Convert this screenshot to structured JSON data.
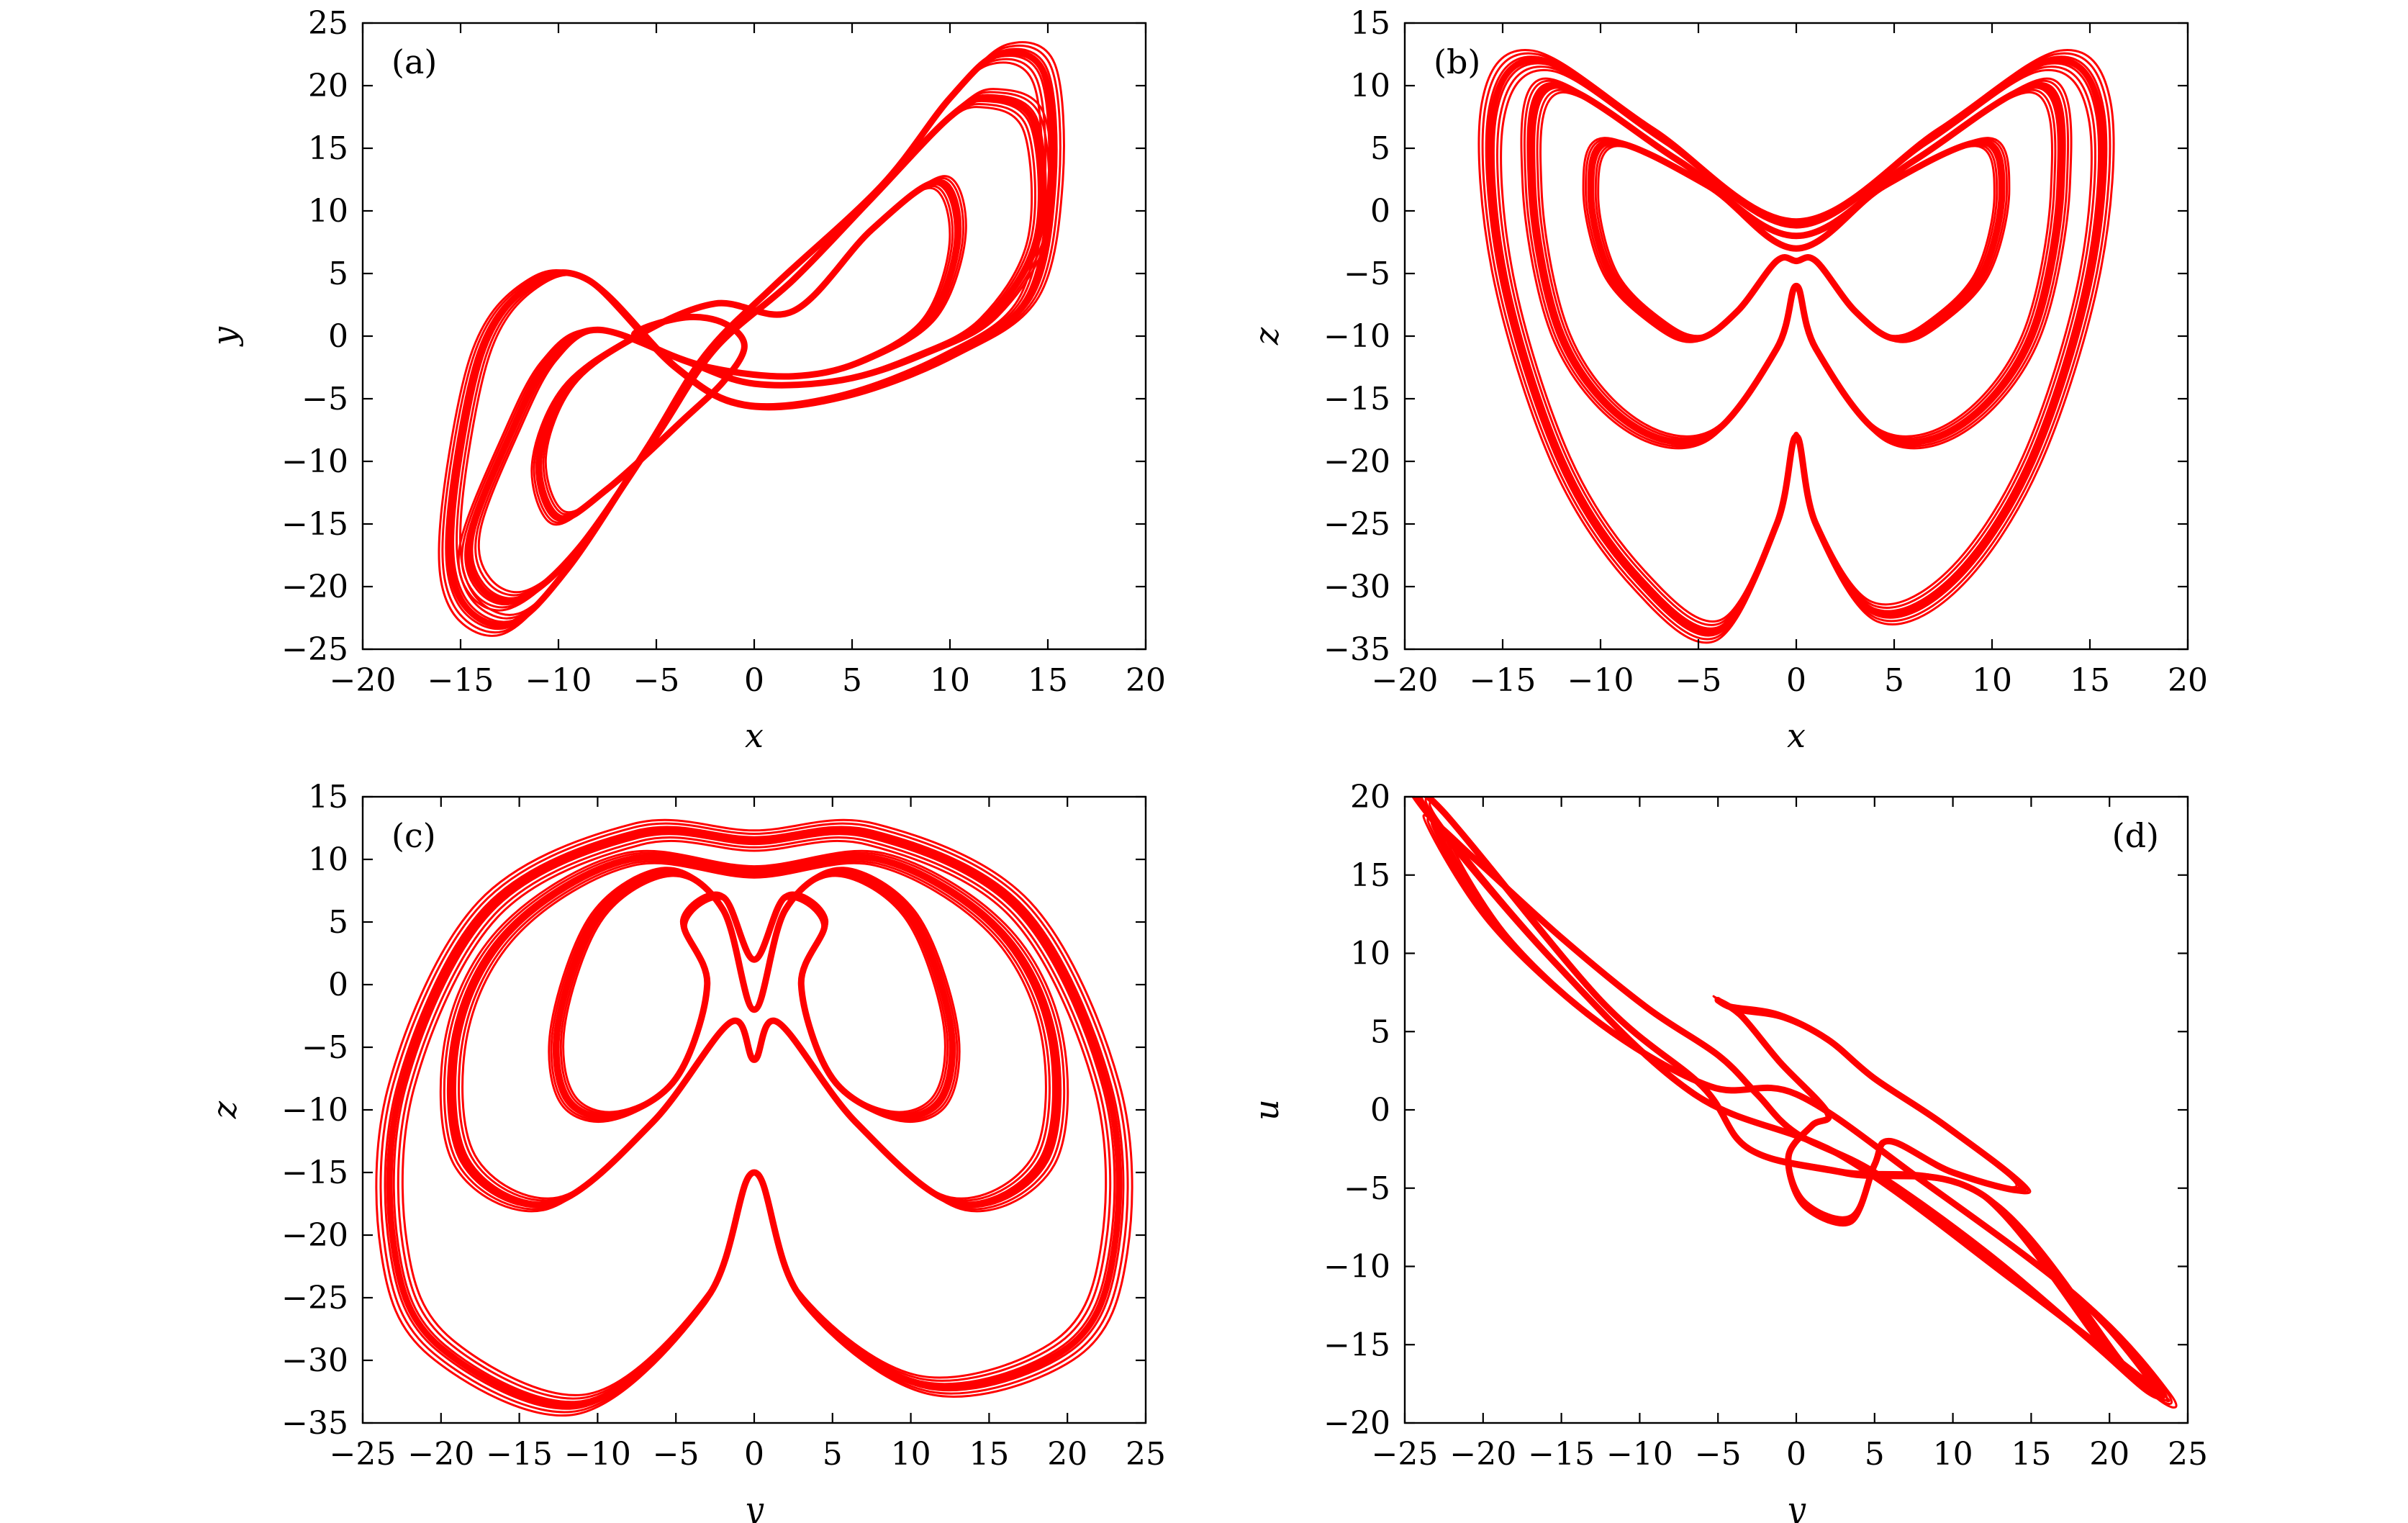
{
  "chart_data": [
    {
      "type": "line",
      "panel_label": "(a)",
      "xlabel": "x",
      "ylabel": "y",
      "xlim": [
        -20,
        20
      ],
      "ylim": [
        -25,
        25
      ],
      "xticks": [
        -20,
        -15,
        -10,
        -5,
        0,
        5,
        10,
        15,
        20
      ],
      "yticks": [
        -25,
        -20,
        -15,
        -10,
        -5,
        0,
        5,
        10,
        15,
        20,
        25
      ],
      "xtick_labels": [
        "−20",
        "−15",
        "−10",
        "−5",
        "0",
        "5",
        "10",
        "15",
        "20"
      ],
      "ytick_labels": [
        "−25",
        "−20",
        "−15",
        "−10",
        "−5",
        "0",
        "5",
        "10",
        "15",
        "20",
        "25"
      ],
      "panel_label_position": "top-left",
      "color": "#ff0000",
      "series": [
        {
          "x": [
            2.0,
            6.0,
            9.4,
            10.4,
            9.0,
            5.5,
            2.0,
            -2.0,
            -5.0,
            -6.0,
            -3.5,
            -1.5,
            -0.5,
            -1.5,
            -3.5,
            -7.5,
            -10.0,
            -11.0,
            -9.5,
            -6.0,
            -2.0,
            2.0
          ],
          "y": [
            2.0,
            8.5,
            12.3,
            8.0,
            1.5,
            -2.0,
            -3.2,
            -2.6,
            -1.0,
            0.3,
            1.5,
            1.0,
            -0.8,
            -3.5,
            -6.5,
            -12.2,
            -14.5,
            -10.0,
            -4.0,
            0.0,
            2.6,
            2.0
          ]
        },
        {
          "x": [
            2.0,
            6.0,
            10.0,
            12.0,
            14.3,
            14.5,
            12.0,
            8.5,
            4.5,
            0.0,
            -3.5,
            -8.0,
            -10.5,
            -12.5,
            -14.5,
            -14.0,
            -12.0,
            -9.0,
            -5.0,
            -2.0,
            2.0
          ],
          "y": [
            4.5,
            11.0,
            17.5,
            19.0,
            17.0,
            8.0,
            1.5,
            -1.5,
            -3.5,
            -3.8,
            -2.0,
            0.5,
            -2.0,
            -8.0,
            -16.0,
            -20.0,
            -21.0,
            -17.0,
            -8.0,
            -1.0,
            4.5
          ]
        },
        {
          "x": [
            1.0,
            6.5,
            10.0,
            12.5,
            14.8,
            15.2,
            14.0,
            10.0,
            4.5,
            -0.5,
            -4.0,
            -8.5,
            -11.5,
            -14.0,
            -15.5,
            -15.0,
            -12.5,
            -9.5,
            -5.5,
            -2.5,
            1.0
          ],
          "y": [
            4.0,
            12.0,
            19.0,
            22.5,
            21.0,
            12.0,
            3.0,
            -1.5,
            -4.8,
            -5.5,
            -2.5,
            4.5,
            4.0,
            -1.5,
            -14.5,
            -21.0,
            -23.0,
            -18.5,
            -9.0,
            -1.5,
            4.0
          ]
        }
      ]
    },
    {
      "type": "line",
      "panel_label": "(b)",
      "xlabel": "x",
      "ylabel": "z",
      "xlim": [
        -20,
        20
      ],
      "ylim": [
        -35,
        15
      ],
      "xticks": [
        -20,
        -15,
        -10,
        -5,
        0,
        5,
        10,
        15,
        20
      ],
      "yticks": [
        -35,
        -30,
        -25,
        -20,
        -15,
        -10,
        -5,
        0,
        5,
        10,
        15
      ],
      "xtick_labels": [
        "−20",
        "−15",
        "−10",
        "−5",
        "0",
        "5",
        "10",
        "15",
        "20"
      ],
      "ytick_labels": [
        "−35",
        "−30",
        "−25",
        "−20",
        "−15",
        "−10",
        "−5",
        "0",
        "5",
        "10",
        "15"
      ],
      "panel_label_position": "top-left",
      "color": "#ff0000",
      "series": [
        {
          "x": [
            0.0,
            -4.5,
            -9.5,
            -10.5,
            -9.5,
            -7.0,
            -5.0,
            -3.0,
            -1.0,
            0.0,
            1.0,
            3.0,
            5.0,
            7.0,
            9.5,
            10.5,
            9.5,
            4.5,
            0.0
          ],
          "y": [
            -3.0,
            2.0,
            5.5,
            1.5,
            -5.0,
            -9.0,
            -10.2,
            -8.0,
            -4.0,
            -4.0,
            -4.0,
            -8.0,
            -10.2,
            -9.0,
            -5.0,
            1.5,
            5.5,
            2.0,
            -3.0
          ]
        },
        {
          "x": [
            0.0,
            -6.0,
            -12.5,
            -13.5,
            -12.0,
            -8.5,
            -4.5,
            -1.0,
            0.0,
            1.0,
            4.5,
            8.5,
            12.0,
            13.5,
            12.5,
            6.0,
            0.0
          ],
          "y": [
            -2.0,
            4.0,
            10.0,
            2.0,
            -10.0,
            -17.0,
            -18.0,
            -11.0,
            -6.0,
            -11.0,
            -18.0,
            -17.0,
            -10.0,
            2.0,
            10.0,
            4.0,
            -2.0
          ]
        },
        {
          "x": [
            0.0,
            -7.0,
            -13.0,
            -15.5,
            -15.0,
            -12.0,
            -8.0,
            -4.0,
            -1.0,
            0.0,
            1.0,
            4.0,
            8.0,
            12.0,
            15.0,
            15.5,
            13.0,
            7.0,
            0.0
          ],
          "y": [
            -1.0,
            6.0,
            12.0,
            8.0,
            -5.0,
            -20.0,
            -29.5,
            -33.5,
            -25.0,
            -18.0,
            -25.0,
            -32.0,
            -29.5,
            -20.0,
            -5.0,
            8.0,
            12.0,
            6.0,
            -1.0
          ]
        }
      ]
    },
    {
      "type": "line",
      "panel_label": "(c)",
      "xlabel": "y",
      "ylabel": "z",
      "xlim": [
        -25,
        25
      ],
      "ylim": [
        -35,
        15
      ],
      "xticks": [
        -25,
        -20,
        -15,
        -10,
        -5,
        0,
        5,
        10,
        15,
        20,
        25
      ],
      "yticks": [
        -35,
        -30,
        -25,
        -20,
        -15,
        -10,
        -5,
        0,
        5,
        10,
        15
      ],
      "xtick_labels": [
        "−25",
        "−20",
        "−15",
        "−10",
        "−5",
        "0",
        "5",
        "10",
        "15",
        "20",
        "25"
      ],
      "ytick_labels": [
        "−35",
        "−30",
        "−25",
        "−20",
        "−15",
        "−10",
        "−5",
        "0",
        "5",
        "10",
        "15"
      ],
      "panel_label_position": "top-left",
      "color": "#ff0000",
      "series": [
        {
          "x": [
            0.0,
            -2.0,
            -5.5,
            -10.0,
            -12.5,
            -12.0,
            -9.0,
            -5.0,
            -3.0,
            -4.5,
            -2.0,
            0.0,
            2.0,
            4.5,
            3.0,
            5.0,
            9.0,
            12.0,
            12.5,
            10.0,
            5.5,
            2.0,
            0.0
          ],
          "y": [
            -2.0,
            6.0,
            9.0,
            5.5,
            -3.0,
            -9.0,
            -10.5,
            -7.5,
            0.0,
            5.0,
            7.0,
            2.0,
            7.0,
            5.0,
            0.0,
            -7.5,
            -10.5,
            -9.0,
            -3.0,
            5.5,
            9.0,
            6.0,
            -2.0
          ]
        },
        {
          "x": [
            0.0,
            -8.0,
            -15.5,
            -19.0,
            -18.5,
            -13.0,
            -6.5,
            -1.5,
            0.0,
            1.5,
            6.5,
            13.0,
            18.5,
            19.0,
            15.5,
            8.0,
            0.0
          ],
          "y": [
            9.0,
            10.0,
            4.5,
            -4.0,
            -14.0,
            -17.5,
            -11.0,
            -3.0,
            -6.0,
            -3.0,
            -11.0,
            -17.5,
            -14.0,
            -4.0,
            4.5,
            10.0,
            9.0
          ]
        },
        {
          "x": [
            0.0,
            -7.5,
            -17.0,
            -22.5,
            -23.0,
            -20.0,
            -11.0,
            -3.0,
            0.0,
            3.0,
            11.0,
            20.0,
            23.0,
            22.5,
            17.0,
            7.5,
            0.0
          ],
          "y": [
            11.5,
            12.0,
            6.0,
            -8.0,
            -21.0,
            -29.0,
            -33.5,
            -25.0,
            -15.0,
            -25.0,
            -32.0,
            -29.0,
            -21.0,
            -8.0,
            6.0,
            12.0,
            11.5
          ]
        }
      ]
    },
    {
      "type": "line",
      "panel_label": "(d)",
      "xlabel": "y",
      "ylabel": "u",
      "xlim": [
        -25,
        25
      ],
      "ylim": [
        -20,
        20
      ],
      "xticks": [
        -25,
        -20,
        -15,
        -10,
        -5,
        0,
        5,
        10,
        15,
        20,
        25
      ],
      "yticks": [
        -20,
        -15,
        -10,
        -5,
        0,
        5,
        10,
        15,
        20
      ],
      "xtick_labels": [
        "−25",
        "−20",
        "−15",
        "−10",
        "−5",
        "0",
        "5",
        "10",
        "15",
        "20",
        "25"
      ],
      "ytick_labels": [
        "−20",
        "−15",
        "−10",
        "−5",
        "0",
        "5",
        "10",
        "15",
        "20"
      ],
      "panel_label_position": "top-right",
      "color": "#ff0000",
      "series": [
        {
          "x": [
            2.0,
            -1.0,
            -3.5,
            -5.0,
            -4.0,
            -1.0,
            2.0,
            5.0,
            9.5,
            14.5,
            10.0,
            6.0,
            5.0,
            3.5,
            0.5,
            -0.5,
            1.0,
            2.0
          ],
          "y": [
            -0.2,
            3.0,
            6.0,
            7.0,
            6.5,
            6.0,
            4.5,
            2.0,
            -1.0,
            -5.0,
            -4.0,
            -2.0,
            -3.5,
            -7.0,
            -6.0,
            -3.0,
            -1.0,
            -0.2
          ]
        },
        {
          "x": [
            -23.0,
            -20.5,
            -15.0,
            -9.5,
            -5.0,
            -2.5,
            0.0,
            5.0,
            12.0,
            18.5,
            22.5,
            23.0,
            18.0,
            8.0,
            0.0,
            -5.5,
            -12.5,
            -19.0,
            -23.0
          ],
          "y": [
            18.0,
            16.0,
            11.0,
            6.5,
            3.5,
            1.0,
            -1.5,
            -4.0,
            -9.0,
            -14.5,
            -18.0,
            -17.5,
            -12.0,
            -4.5,
            1.0,
            1.5,
            5.5,
            11.5,
            18.0
          ]
        },
        {
          "x": [
            -23.5,
            -22.5,
            -12.5,
            -6.0,
            -3.0,
            3.0,
            12.0,
            20.5,
            22.5,
            14.0,
            3.0,
            -6.5,
            -15.5,
            -23.5
          ],
          "y": [
            19.0,
            19.0,
            7.0,
            1.5,
            -2.5,
            -4.0,
            -5.5,
            -16.0,
            -17.5,
            -11.0,
            -3.0,
            1.0,
            9.5,
            19.0
          ]
        }
      ]
    }
  ]
}
